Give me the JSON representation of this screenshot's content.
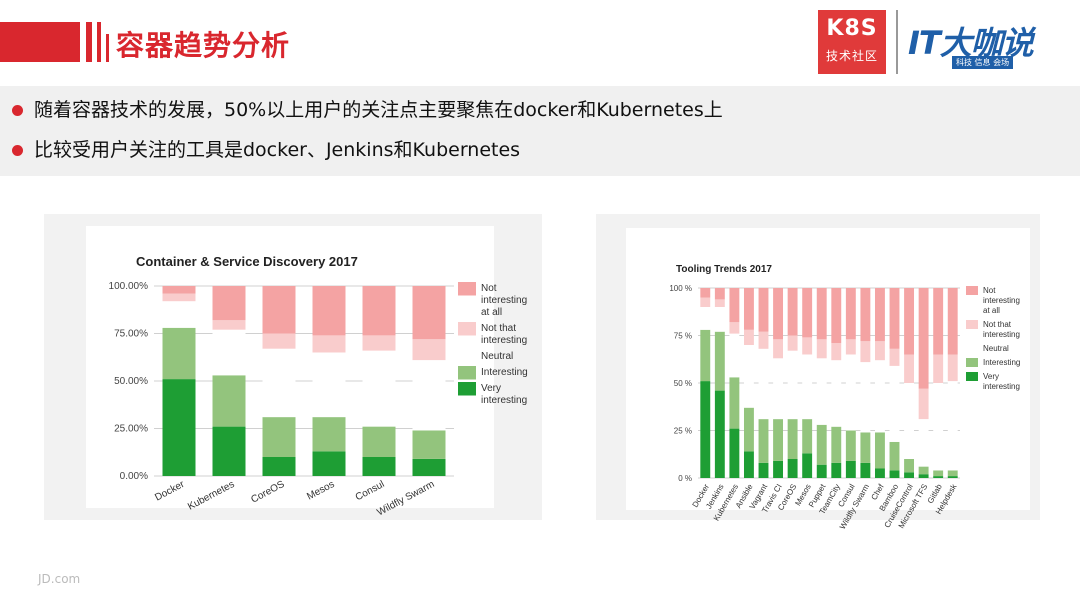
{
  "header": {
    "title": "容器趋势分析",
    "logo_k8s": "K8S",
    "logo_k8s_sub": "技术社区",
    "logo_it": "IT大咖说",
    "logo_it_sub": "科技 信息 会场"
  },
  "bullets": [
    "随着容器技术的发展，50%以上用户的关注点主要聚焦在docker和Kubernetes上",
    "比较受用户关注的工具是docker、Jenkins和Kubernetes"
  ],
  "footer": "JD.com",
  "colors": {
    "accent": "#d9272e",
    "not_interesting": "#f4a3a3",
    "not_that": "#f9cccc",
    "neutral": "#ffffff",
    "interesting": "#93c47d",
    "very": "#1e9e34"
  },
  "chart_data": [
    {
      "type": "bar",
      "stacked": true,
      "title": "Container & Service Discovery 2017",
      "categories": [
        "Docker",
        "Kubernetes",
        "CoreOS",
        "Mesos",
        "Consul",
        "Wildfly Swarm"
      ],
      "yticks": [
        "0.00%",
        "25.00%",
        "50.00%",
        "75.00%",
        "100.00%"
      ],
      "ylim": [
        0,
        100
      ],
      "legend_position": "right",
      "series": [
        {
          "name": "Very interesting",
          "color": "#1e9e34",
          "values": [
            51,
            26,
            10,
            13,
            10,
            9
          ]
        },
        {
          "name": "Interesting",
          "color": "#93c47d",
          "values": [
            27,
            27,
            21,
            18,
            16,
            15
          ]
        },
        {
          "name": "Neutral",
          "color": "#ffffff",
          "values": [
            14,
            24,
            36,
            34,
            40,
            37
          ]
        },
        {
          "name": "Not that interesting",
          "color": "#f9cccc",
          "values": [
            4,
            5,
            8,
            9,
            8,
            11
          ]
        },
        {
          "name": "Not interesting at all",
          "color": "#f4a3a3",
          "values": [
            4,
            18,
            25,
            26,
            26,
            28
          ]
        }
      ],
      "legend": [
        {
          "label": "Not interesting at all",
          "color": "#f4a3a3"
        },
        {
          "label": "Not that interesting",
          "color": "#f9cccc"
        },
        {
          "label": "Neutral",
          "color": "#ffffff"
        },
        {
          "label": "Interesting",
          "color": "#93c47d"
        },
        {
          "label": "Very interesting",
          "color": "#1e9e34"
        }
      ]
    },
    {
      "type": "bar",
      "stacked": true,
      "title": "Tooling Trends 2017",
      "categories": [
        "Docker",
        "Jenkins",
        "Kubernetes",
        "Ansible",
        "Vagrant",
        "Travis CI",
        "CoreOS",
        "Mesos",
        "Puppet",
        "TeamCity",
        "Consul",
        "Wildfly Swarm",
        "Chef",
        "Bamboo",
        "CruiseControl",
        "Microsoft TFS",
        "Gitlab",
        "Helpdesk"
      ],
      "yticks": [
        "0 %",
        "25 %",
        "50 %",
        "75 %",
        "100 %"
      ],
      "ylim": [
        0,
        100
      ],
      "legend_position": "right",
      "series": [
        {
          "name": "Very interesting",
          "color": "#1e9e34",
          "values": [
            51,
            46,
            26,
            14,
            8,
            9,
            10,
            13,
            7,
            8,
            9,
            8,
            5,
            4,
            3,
            2,
            1,
            1
          ]
        },
        {
          "name": "Interesting",
          "color": "#93c47d",
          "values": [
            27,
            31,
            27,
            23,
            23,
            22,
            21,
            18,
            21,
            19,
            16,
            16,
            19,
            15,
            7,
            4,
            3,
            3
          ]
        },
        {
          "name": "Neutral",
          "color": "#ffffff",
          "values": [
            12,
            13,
            23,
            33,
            37,
            32,
            36,
            34,
            35,
            35,
            40,
            37,
            38,
            40,
            40,
            25,
            46,
            47
          ]
        },
        {
          "name": "Not that interesting",
          "color": "#f9cccc",
          "values": [
            5,
            4,
            6,
            8,
            9,
            10,
            8,
            9,
            10,
            9,
            8,
            11,
            10,
            9,
            15,
            16,
            15,
            14
          ]
        },
        {
          "name": "Not interesting at all",
          "color": "#f4a3a3",
          "values": [
            5,
            6,
            18,
            22,
            23,
            27,
            25,
            26,
            27,
            29,
            27,
            28,
            28,
            32,
            35,
            53,
            35,
            35
          ]
        }
      ],
      "legend": [
        {
          "label": "Not interesting at all",
          "color": "#f4a3a3"
        },
        {
          "label": "Not that interesting",
          "color": "#f9cccc"
        },
        {
          "label": "Neutral",
          "color": "#ffffff"
        },
        {
          "label": "Interesting",
          "color": "#93c47d"
        },
        {
          "label": "Very interesting",
          "color": "#1e9e34"
        }
      ]
    }
  ]
}
